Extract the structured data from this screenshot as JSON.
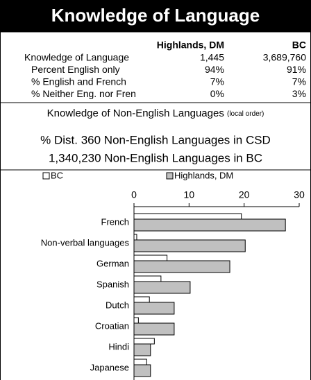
{
  "header": {
    "title": "Knowledge of Language"
  },
  "table": {
    "columns": [
      "Highlands, DM",
      "BC"
    ],
    "rows": [
      [
        "Knowledge of Language",
        "1,445",
        "3,689,760"
      ],
      [
        "Percent English only",
        "94%",
        "91%"
      ],
      [
        "% English and French",
        "7%",
        "7%"
      ],
      [
        "% Neither Eng. nor French",
        "0%",
        "3%"
      ]
    ]
  },
  "section": {
    "lines": [
      "Knowledge of Non-English Languages",
      "% Dist. 360 Non-English Languages in CSD",
      "1,340,230 Non-English Languages in BC"
    ],
    "note": "(local order)"
  },
  "chart_data": {
    "type": "bar",
    "orientation": "horizontal",
    "categories": [
      "French",
      "Non-verbal languages",
      "German",
      "Spanish",
      "Dutch",
      "Croatian",
      "Hindi",
      "Japanese"
    ],
    "series": [
      {
        "name": "BC",
        "color": "#ffffff",
        "values": [
          19.5,
          0.5,
          6,
          4.9,
          2.8,
          0.8,
          3.7,
          2.3
        ]
      },
      {
        "name": "Highlands, DM",
        "color": "#c0c0c0",
        "values": [
          27.5,
          20.2,
          17.4,
          10.2,
          7.3,
          7.3,
          3,
          3
        ]
      }
    ],
    "xlim": [
      0,
      30
    ],
    "xticks": [
      0,
      10,
      20,
      30
    ]
  }
}
